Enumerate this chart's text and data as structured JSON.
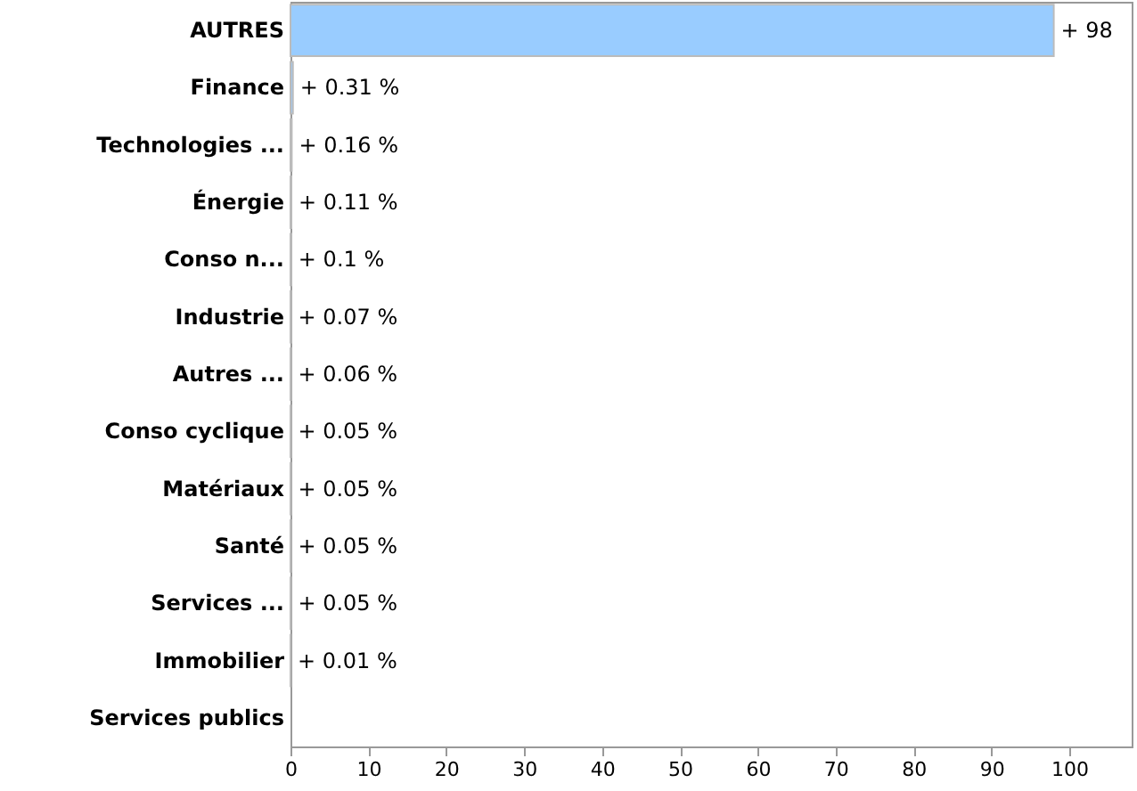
{
  "chart_data": {
    "type": "bar",
    "orientation": "horizontal",
    "categories": [
      "AUTRES",
      "Finance",
      "Technologies ...",
      "Énergie",
      "Conso n...",
      "Industrie",
      "Autres ...",
      "Conso cyclique",
      "Matériaux",
      "Santé",
      "Services ...",
      "Immobilier",
      "Services publics"
    ],
    "values": [
      98,
      0.31,
      0.16,
      0.11,
      0.1,
      0.07,
      0.06,
      0.05,
      0.05,
      0.05,
      0.05,
      0.01,
      null
    ],
    "value_labels": [
      "+ 98",
      "+ 0.31 %",
      "+ 0.16 %",
      "+ 0.11 %",
      "+ 0.1 %",
      "+ 0.07 %",
      "+ 0.06 %",
      "+ 0.05 %",
      "+ 0.05 %",
      "+ 0.05 %",
      "+ 0.05 %",
      "+ 0.01 %",
      null
    ],
    "color": "#99ccff",
    "xlim": [
      0,
      108
    ],
    "xticks": [
      0,
      10,
      20,
      30,
      40,
      50,
      60,
      70,
      80,
      90,
      100
    ],
    "grid": false
  }
}
